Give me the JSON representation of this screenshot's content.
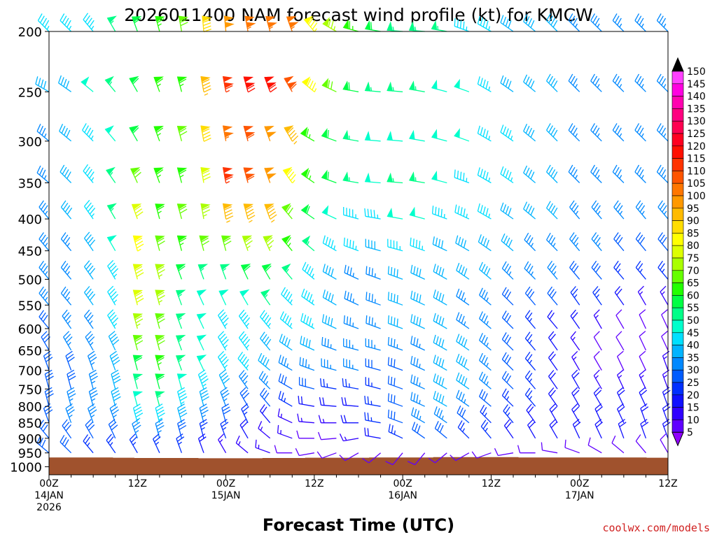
{
  "chart_data": {
    "type": "wind-barb-profile",
    "title": "2026011400 NAM forecast wind profile (kt) for KMCW",
    "xlabel": "Forecast Time (UTC)",
    "ylabel": "",
    "watermark": "coolwx.com/models",
    "y_levels_hpa": [
      200,
      250,
      300,
      350,
      400,
      450,
      500,
      550,
      600,
      650,
      700,
      750,
      800,
      850,
      900,
      950,
      1000
    ],
    "y_range_hpa": [
      200,
      1030
    ],
    "x_range_hours": [
      0,
      84
    ],
    "x_step_hours": 3,
    "x_ticks": [
      {
        "hour": 0,
        "lines": [
          "00Z",
          "14JAN",
          "2026"
        ]
      },
      {
        "hour": 12,
        "lines": [
          "12Z"
        ]
      },
      {
        "hour": 24,
        "lines": [
          "00Z",
          "15JAN"
        ]
      },
      {
        "hour": 36,
        "lines": [
          "12Z"
        ]
      },
      {
        "hour": 48,
        "lines": [
          "00Z",
          "16JAN"
        ]
      },
      {
        "hour": 60,
        "lines": [
          "12Z"
        ]
      },
      {
        "hour": 72,
        "lines": [
          "00Z",
          "17JAN"
        ]
      },
      {
        "hour": 84,
        "lines": [
          "12Z"
        ]
      }
    ],
    "barb_levels_hpa": [
      200,
      250,
      300,
      350,
      400,
      450,
      500,
      550,
      600,
      650,
      700,
      750,
      800,
      850,
      900,
      950
    ],
    "colorbar": {
      "labels": [
        "150",
        "145",
        "140",
        "135",
        "130",
        "125",
        "120",
        "115",
        "110",
        "105",
        "100",
        "95",
        "90",
        "85",
        "80",
        "75",
        "70",
        "65",
        "60",
        "55",
        "50",
        "45",
        "40",
        "35",
        "30",
        "25",
        "20",
        "15",
        "10",
        "5"
      ],
      "colors": [
        "#ff40ff",
        "#ff00e0",
        "#ff00b0",
        "#ff0080",
        "#ff0050",
        "#ff0020",
        "#ff1000",
        "#ff3300",
        "#ff5500",
        "#ff7700",
        "#ff9900",
        "#ffbb00",
        "#ffdd00",
        "#ffff00",
        "#ddff00",
        "#aaff00",
        "#66ff00",
        "#22ff00",
        "#00ff44",
        "#00ff88",
        "#00ffcc",
        "#00e0ff",
        "#00b4ff",
        "#0088ff",
        "#005cff",
        "#0030ff",
        "#1010ff",
        "#3000ff",
        "#6000ff",
        "#9000ff"
      ]
    },
    "terrain": {
      "color": "#a0522d",
      "pressure_hpa": [
        966,
        966,
        966,
        967,
        968,
        968,
        968,
        969,
        969,
        969,
        968,
        968,
        967,
        967,
        967,
        966,
        966,
        966,
        965,
        965,
        965,
        965,
        966,
        966,
        966,
        966,
        966,
        966,
        967
      ]
    },
    "wind_field": {
      "note": "knots and direction-from degrees at each 3-h step, 200 to 950 hPa; estimated from barbs",
      "speed_kt": [
        [
          45,
          45,
          45,
          55,
          60,
          65,
          70,
          90,
          100,
          105,
          105,
          105,
          85,
          75,
          65,
          60,
          55,
          55,
          55,
          45,
          45,
          40,
          40,
          40,
          35,
          35,
          35,
          35,
          35
        ],
        [
          40,
          40,
          50,
          55,
          60,
          65,
          65,
          95,
          115,
          120,
          120,
          110,
          85,
          70,
          60,
          55,
          55,
          55,
          50,
          50,
          45,
          40,
          40,
          40,
          35,
          35,
          35,
          35,
          35
        ],
        [
          35,
          40,
          45,
          50,
          60,
          65,
          70,
          90,
          105,
          110,
          100,
          95,
          65,
          60,
          55,
          50,
          50,
          50,
          50,
          50,
          45,
          45,
          40,
          40,
          35,
          35,
          35,
          35,
          35
        ],
        [
          35,
          40,
          45,
          55,
          70,
          65,
          65,
          80,
          115,
          110,
          100,
          85,
          65,
          60,
          55,
          50,
          55,
          55,
          50,
          45,
          45,
          45,
          40,
          40,
          35,
          35,
          35,
          35,
          35
        ],
        [
          35,
          40,
          45,
          55,
          80,
          65,
          70,
          75,
          95,
          95,
          95,
          70,
          60,
          50,
          45,
          45,
          50,
          50,
          45,
          45,
          45,
          40,
          40,
          40,
          35,
          35,
          35,
          35,
          35
        ],
        [
          35,
          35,
          40,
          50,
          85,
          70,
          65,
          70,
          70,
          75,
          75,
          65,
          55,
          45,
          45,
          40,
          45,
          45,
          40,
          40,
          40,
          40,
          35,
          35,
          35,
          35,
          30,
          30,
          30
        ],
        [
          35,
          35,
          40,
          45,
          80,
          75,
          60,
          55,
          55,
          60,
          60,
          55,
          45,
          40,
          35,
          35,
          40,
          40,
          40,
          40,
          40,
          35,
          35,
          35,
          30,
          30,
          25,
          25,
          25
        ],
        [
          35,
          35,
          40,
          45,
          80,
          75,
          55,
          50,
          50,
          50,
          55,
          45,
          45,
          40,
          35,
          35,
          40,
          40,
          40,
          35,
          35,
          30,
          30,
          30,
          25,
          25,
          20,
          15,
          15
        ],
        [
          30,
          35,
          35,
          45,
          75,
          70,
          55,
          50,
          45,
          45,
          45,
          45,
          45,
          40,
          35,
          35,
          40,
          40,
          40,
          35,
          35,
          30,
          25,
          20,
          20,
          15,
          10,
          10,
          10
        ],
        [
          30,
          35,
          35,
          40,
          70,
          70,
          55,
          50,
          45,
          45,
          40,
          40,
          40,
          35,
          35,
          35,
          35,
          35,
          40,
          40,
          35,
          30,
          25,
          20,
          15,
          10,
          10,
          10,
          10
        ],
        [
          30,
          30,
          35,
          40,
          60,
          65,
          55,
          50,
          45,
          45,
          40,
          35,
          35,
          35,
          35,
          30,
          30,
          35,
          40,
          40,
          35,
          30,
          25,
          20,
          15,
          10,
          10,
          10,
          15
        ],
        [
          30,
          30,
          35,
          40,
          55,
          60,
          50,
          45,
          40,
          35,
          35,
          30,
          30,
          25,
          25,
          25,
          30,
          35,
          40,
          40,
          35,
          30,
          25,
          20,
          20,
          15,
          15,
          15,
          15
        ],
        [
          30,
          35,
          35,
          40,
          50,
          55,
          45,
          40,
          35,
          30,
          30,
          25,
          20,
          20,
          20,
          25,
          30,
          35,
          40,
          35,
          30,
          25,
          25,
          20,
          20,
          20,
          20,
          20,
          20
        ],
        [
          30,
          35,
          35,
          35,
          45,
          45,
          40,
          35,
          30,
          25,
          20,
          15,
          15,
          15,
          20,
          25,
          30,
          35,
          35,
          30,
          25,
          25,
          20,
          20,
          20,
          20,
          20,
          20,
          20
        ],
        [
          30,
          30,
          30,
          30,
          35,
          35,
          30,
          25,
          25,
          20,
          15,
          15,
          10,
          10,
          15,
          20,
          25,
          30,
          30,
          25,
          25,
          20,
          20,
          20,
          20,
          20,
          20,
          20,
          20
        ],
        [
          30,
          30,
          25,
          25,
          25,
          25,
          25,
          20,
          15,
          15,
          15,
          10,
          10,
          10,
          10,
          10,
          10,
          10,
          10,
          10,
          10,
          10,
          10,
          10,
          10,
          10,
          10,
          10,
          10
        ]
      ],
      "dir_deg": [
        [
          315,
          315,
          320,
          330,
          340,
          345,
          350,
          355,
          355,
          350,
          345,
          340,
          320,
          300,
          285,
          280,
          275,
          275,
          280,
          290,
          300,
          305,
          310,
          315,
          315,
          315,
          315,
          315,
          315
        ],
        [
          300,
          305,
          310,
          320,
          330,
          340,
          345,
          350,
          350,
          345,
          340,
          330,
          310,
          295,
          280,
          275,
          275,
          280,
          285,
          290,
          300,
          305,
          310,
          315,
          315,
          315,
          315,
          315,
          315
        ],
        [
          310,
          310,
          315,
          320,
          330,
          340,
          345,
          350,
          350,
          345,
          340,
          330,
          300,
          290,
          280,
          275,
          275,
          280,
          285,
          290,
          300,
          305,
          310,
          315,
          315,
          315,
          315,
          315,
          315
        ],
        [
          310,
          315,
          320,
          325,
          335,
          340,
          345,
          350,
          350,
          345,
          340,
          325,
          305,
          290,
          280,
          275,
          275,
          280,
          285,
          290,
          300,
          305,
          310,
          315,
          315,
          315,
          315,
          315,
          315
        ],
        [
          320,
          320,
          325,
          330,
          340,
          345,
          345,
          350,
          350,
          345,
          340,
          320,
          305,
          295,
          285,
          280,
          280,
          285,
          290,
          295,
          300,
          305,
          310,
          315,
          320,
          320,
          320,
          320,
          320
        ],
        [
          320,
          320,
          325,
          330,
          345,
          345,
          345,
          345,
          345,
          340,
          335,
          320,
          310,
          300,
          290,
          285,
          285,
          290,
          295,
          300,
          305,
          310,
          315,
          315,
          320,
          320,
          320,
          320,
          320
        ],
        [
          320,
          320,
          325,
          330,
          345,
          345,
          340,
          340,
          340,
          335,
          330,
          320,
          310,
          300,
          295,
          290,
          290,
          295,
          300,
          305,
          310,
          315,
          315,
          320,
          320,
          320,
          320,
          320,
          320
        ],
        [
          320,
          320,
          325,
          330,
          345,
          345,
          340,
          335,
          335,
          330,
          325,
          315,
          305,
          300,
          295,
          290,
          290,
          295,
          300,
          305,
          310,
          315,
          320,
          320,
          325,
          325,
          325,
          330,
          330
        ],
        [
          320,
          325,
          325,
          330,
          345,
          345,
          340,
          335,
          330,
          325,
          320,
          310,
          300,
          295,
          290,
          290,
          290,
          295,
          300,
          305,
          310,
          315,
          320,
          320,
          325,
          330,
          330,
          335,
          335
        ],
        [
          330,
          330,
          330,
          335,
          345,
          345,
          340,
          335,
          330,
          325,
          320,
          305,
          295,
          290,
          285,
          285,
          290,
          295,
          300,
          305,
          310,
          315,
          320,
          325,
          325,
          330,
          330,
          335,
          335
        ],
        [
          340,
          340,
          340,
          340,
          345,
          345,
          340,
          335,
          330,
          320,
          310,
          300,
          290,
          285,
          285,
          285,
          290,
          295,
          300,
          305,
          310,
          315,
          320,
          325,
          330,
          330,
          335,
          335,
          340
        ],
        [
          345,
          345,
          345,
          345,
          345,
          345,
          345,
          340,
          335,
          325,
          315,
          300,
          285,
          280,
          280,
          285,
          290,
          295,
          300,
          305,
          310,
          315,
          320,
          325,
          330,
          330,
          335,
          335,
          340
        ],
        [
          345,
          345,
          345,
          345,
          345,
          345,
          345,
          345,
          340,
          330,
          320,
          300,
          280,
          275,
          275,
          280,
          290,
          295,
          300,
          305,
          310,
          315,
          320,
          325,
          330,
          330,
          335,
          335,
          340
        ],
        [
          340,
          340,
          340,
          340,
          345,
          345,
          345,
          345,
          345,
          335,
          320,
          295,
          275,
          270,
          270,
          280,
          290,
          300,
          305,
          310,
          315,
          320,
          325,
          330,
          330,
          335,
          335,
          340,
          340
        ],
        [
          320,
          325,
          330,
          335,
          340,
          345,
          345,
          345,
          340,
          330,
          310,
          290,
          270,
          265,
          260,
          280,
          295,
          305,
          310,
          315,
          320,
          325,
          330,
          330,
          335,
          335,
          340,
          340,
          340
        ],
        [
          310,
          315,
          320,
          325,
          330,
          335,
          340,
          340,
          330,
          310,
          290,
          270,
          260,
          250,
          240,
          230,
          220,
          220,
          230,
          240,
          250,
          260,
          270,
          280,
          290,
          300,
          310,
          320,
          330
        ]
      ]
    }
  }
}
